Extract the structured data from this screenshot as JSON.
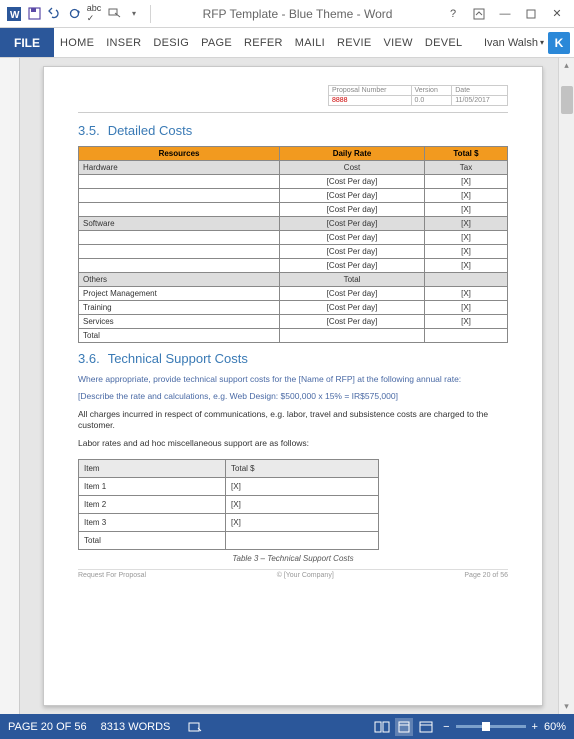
{
  "titlebar": {
    "title": "RFP Template - Blue Theme - Word"
  },
  "ribbon": {
    "file": "FILE",
    "tabs": [
      "HOME",
      "INSER",
      "DESIG",
      "PAGE",
      "REFER",
      "MAILI",
      "REVIE",
      "VIEW",
      "DEVEL"
    ],
    "user": "Ivan Walsh",
    "badge": "K"
  },
  "doc": {
    "header": {
      "cols": [
        "Proposal Number",
        "Version",
        "Date"
      ],
      "vals": [
        "8888",
        "0.0",
        "11/05/2017"
      ]
    },
    "s35": {
      "heading_num": "3.5.",
      "heading": "Detailed Costs",
      "th": [
        "Resources",
        "Daily Rate",
        "Total $"
      ],
      "rows": [
        {
          "a": "Hardware",
          "b": "Cost",
          "c": "Tax",
          "sub": true
        },
        {
          "a": "",
          "b": "[Cost Per day]",
          "c": "[X]"
        },
        {
          "a": "",
          "b": "[Cost Per day]",
          "c": "[X]"
        },
        {
          "a": "",
          "b": "[Cost Per day]",
          "c": "[X]"
        },
        {
          "a": "Software",
          "b": "[Cost Per day]",
          "c": "[X]",
          "sub": true
        },
        {
          "a": "",
          "b": "[Cost Per day]",
          "c": "[X]"
        },
        {
          "a": "",
          "b": "[Cost Per day]",
          "c": "[X]"
        },
        {
          "a": "",
          "b": "[Cost Per day]",
          "c": "[X]"
        },
        {
          "a": "Others",
          "b": "Total",
          "c": "",
          "sub": true
        },
        {
          "a": "Project Management",
          "b": "[Cost Per day]",
          "c": "[X]"
        },
        {
          "a": "Training",
          "b": "[Cost Per day]",
          "c": "[X]"
        },
        {
          "a": "Services",
          "b": "[Cost Per day]",
          "c": "[X]"
        },
        {
          "a": "Total",
          "b": "",
          "c": ""
        }
      ]
    },
    "s36": {
      "heading_num": "3.6.",
      "heading": "Technical Support Costs",
      "p1": "Where appropriate, provide technical support costs for the [Name of RFP] at the following annual rate:",
      "p2": "[Describe the rate and calculations, e.g. Web Design: $500,000 x 15% = IR$575,000]",
      "p3": "All charges incurred in respect of communications, e.g. labor, travel and subsistence costs are charged to the customer.",
      "p4": "Labor rates and ad hoc miscellaneous support are as follows:",
      "th": [
        "Item",
        "Total $"
      ],
      "rows": [
        {
          "a": "Item 1",
          "b": "[X]"
        },
        {
          "a": "Item 2",
          "b": "[X]"
        },
        {
          "a": "Item 3",
          "b": "[X]"
        },
        {
          "a": "Total",
          "b": ""
        }
      ],
      "caption": "Table 3 – Technical Support Costs"
    },
    "footer": {
      "left": "Request For Proposal",
      "mid": "© [Your Company]",
      "right": "Page 20 of 56"
    }
  },
  "status": {
    "page": "PAGE 20 OF 56",
    "words": "8313 WORDS",
    "zoom": "60%"
  }
}
